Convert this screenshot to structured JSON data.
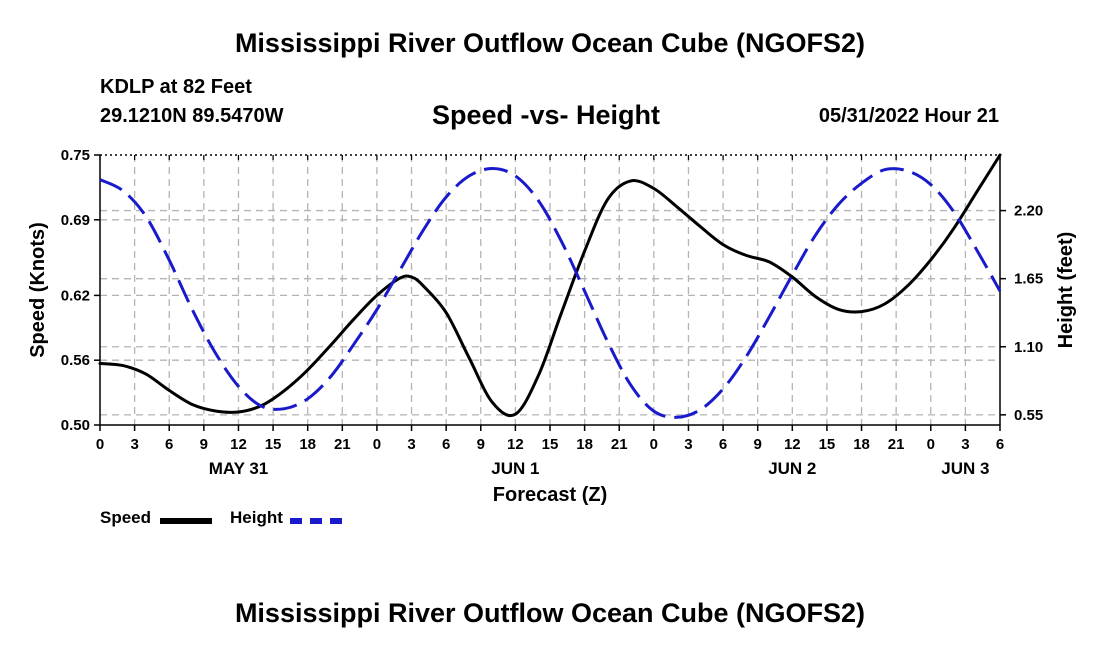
{
  "page": {
    "main_title": "Mississippi River Outflow Ocean Cube (NGOFS2)",
    "footer_title": "Mississippi River Outflow Ocean Cube (NGOFS2)",
    "station": "KDLP at 82 Feet",
    "coords": "29.1210N  89.5470W",
    "subtitle": "Speed -vs- Height",
    "datetime": "05/31/2022 Hour 21"
  },
  "chart_data": {
    "type": "line",
    "title": "Speed -vs- Height",
    "xlabel": "Forecast (Z)",
    "ylabel_left": "Speed (Knots)",
    "ylabel_right": "Height (feet)",
    "xlim": [
      0,
      78
    ],
    "ylim_left": [
      0.5,
      0.75
    ],
    "ylim_right": [
      0.468,
      2.649
    ],
    "x_ticks": [
      0,
      3,
      6,
      9,
      12,
      15,
      18,
      21,
      24,
      27,
      30,
      33,
      36,
      39,
      42,
      45,
      48,
      51,
      54,
      57,
      60,
      63,
      66,
      69,
      72,
      75,
      78
    ],
    "x_tick_labels": [
      "0",
      "3",
      "6",
      "9",
      "12",
      "15",
      "18",
      "21",
      "0",
      "3",
      "6",
      "9",
      "12",
      "15",
      "18",
      "21",
      "0",
      "3",
      "6",
      "9",
      "12",
      "15",
      "18",
      "21",
      "0",
      "3",
      "6"
    ],
    "date_labels": [
      {
        "x": 12,
        "text": "MAY 31"
      },
      {
        "x": 36,
        "text": "JUN 1"
      },
      {
        "x": 60,
        "text": "JUN 2"
      },
      {
        "x": 75,
        "text": "JUN 3"
      }
    ],
    "y_left_ticks": [
      0.5,
      0.56,
      0.62,
      0.69,
      0.75
    ],
    "y_left_tick_labels": [
      "0.50",
      "0.56",
      "0.62",
      "0.69",
      "0.75"
    ],
    "y_right_ticks": [
      0.55,
      1.1,
      1.65,
      2.2
    ],
    "y_right_tick_labels": [
      "0.55",
      "1.10",
      "1.65",
      "2.20"
    ],
    "grid": true,
    "legend_position": "bottom-left",
    "series": [
      {
        "name": "Speed",
        "axis": "left",
        "color": "#000000",
        "style": "solid",
        "x": [
          0,
          2,
          4,
          6,
          8,
          10,
          12,
          14,
          16,
          18,
          20,
          22,
          24,
          26,
          27,
          28,
          30,
          32,
          34,
          36,
          38,
          40,
          42,
          44,
          46,
          48,
          50,
          52,
          54,
          56,
          58,
          60,
          62,
          64,
          66,
          68,
          70,
          72,
          74,
          76,
          78
        ],
        "values": [
          0.557,
          0.555,
          0.547,
          0.532,
          0.519,
          0.513,
          0.512,
          0.518,
          0.532,
          0.551,
          0.574,
          0.598,
          0.62,
          0.636,
          0.637,
          0.629,
          0.604,
          0.562,
          0.521,
          0.51,
          0.546,
          0.604,
          0.661,
          0.709,
          0.726,
          0.719,
          0.702,
          0.684,
          0.667,
          0.657,
          0.651,
          0.637,
          0.619,
          0.607,
          0.605,
          0.612,
          0.629,
          0.653,
          0.682,
          0.716,
          0.75
        ]
      },
      {
        "name": "Height",
        "axis": "right",
        "color": "#1a1acd",
        "style": "dashed",
        "x": [
          0,
          2,
          4,
          6,
          8,
          10,
          12,
          14,
          16,
          18,
          20,
          22,
          24,
          26,
          28,
          30,
          32,
          34,
          36,
          38,
          40,
          42,
          44,
          46,
          48,
          50,
          52,
          54,
          56,
          58,
          60,
          62,
          64,
          66,
          68,
          70,
          72,
          74,
          76,
          78
        ],
        "values": [
          2.45,
          2.36,
          2.15,
          1.8,
          1.4,
          1.05,
          0.78,
          0.62,
          0.6,
          0.68,
          0.86,
          1.12,
          1.4,
          1.72,
          2.04,
          2.31,
          2.48,
          2.54,
          2.48,
          2.28,
          1.95,
          1.55,
          1.14,
          0.79,
          0.58,
          0.53,
          0.59,
          0.76,
          1.02,
          1.34,
          1.68,
          2.0,
          2.25,
          2.42,
          2.53,
          2.52,
          2.41,
          2.19,
          1.88,
          1.55
        ]
      }
    ],
    "legend": [
      {
        "name": "Speed",
        "color": "#000000",
        "style": "solid"
      },
      {
        "name": "Height",
        "color": "#1a1acd",
        "style": "dashed"
      }
    ]
  }
}
